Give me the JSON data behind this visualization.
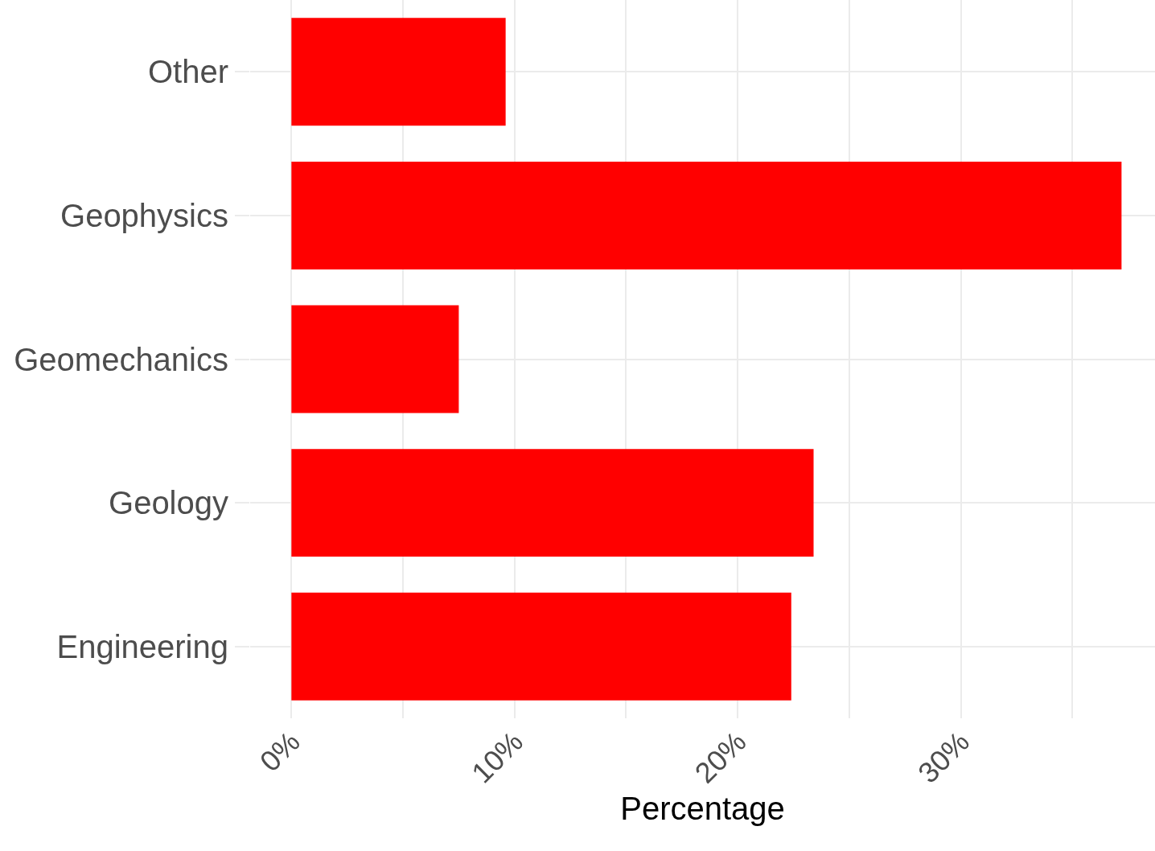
{
  "chart_data": {
    "type": "bar",
    "orientation": "horizontal",
    "xlabel": "Percentage",
    "categories": [
      "Other",
      "Geophysics",
      "Geomechanics",
      "Geology",
      "Engineering"
    ],
    "values": [
      9.6,
      37.2,
      7.5,
      23.4,
      22.4
    ],
    "color": "#ff0000",
    "xlim": [
      -1.85,
      38.7
    ],
    "xticks": [
      {
        "value": 0,
        "label": "0%"
      },
      {
        "value": 5,
        "label": null
      },
      {
        "value": 10,
        "label": "10%"
      },
      {
        "value": 15,
        "label": null
      },
      {
        "value": 20,
        "label": "20%"
      },
      {
        "value": 25,
        "label": null
      },
      {
        "value": 30,
        "label": "30%"
      },
      {
        "value": 35,
        "label": null
      }
    ],
    "grid": true,
    "legend": false
  }
}
